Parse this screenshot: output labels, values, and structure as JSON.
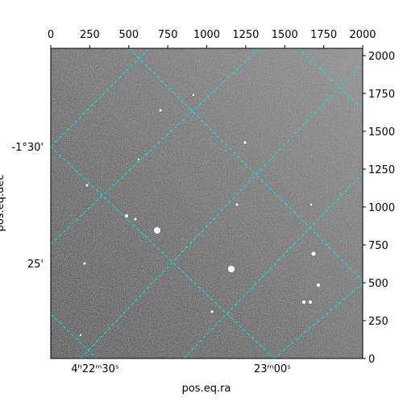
{
  "chart_data": {
    "type": "image",
    "xlabel": "pos.eq.ra",
    "ylabel": "pos.eq.dec",
    "xlim": [
      0,
      2000
    ],
    "xticks": [
      0,
      250,
      500,
      750,
      1000,
      1250,
      1500,
      1750,
      2000
    ],
    "ylim": [
      0,
      2048
    ],
    "yticks": [
      0,
      250,
      500,
      750,
      1000,
      1250,
      1500,
      1750,
      2000
    ],
    "ra_ticks": [
      "4ʰ22ᵐ30ˢ",
      "23ᵐ00ˢ"
    ],
    "dec_ticks": [
      "-1°30'",
      "25'"
    ]
  }
}
